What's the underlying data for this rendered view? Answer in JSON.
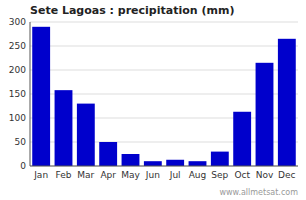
{
  "chart_data": {
    "type": "bar",
    "title": "Sete Lagoas : precipitation (mm)",
    "categories": [
      "Jan",
      "Feb",
      "Mar",
      "Apr",
      "May",
      "Jun",
      "Jul",
      "Aug",
      "Sep",
      "Oct",
      "Nov",
      "Dec"
    ],
    "values": [
      290,
      158,
      130,
      50,
      25,
      10,
      13,
      10,
      30,
      113,
      215,
      265
    ],
    "color": "#0000cc",
    "ylim": [
      0,
      300
    ],
    "yticks": [
      0,
      50,
      100,
      150,
      200,
      250,
      300
    ],
    "grid": true,
    "annotations": [
      "www.allmetsat.com"
    ]
  }
}
